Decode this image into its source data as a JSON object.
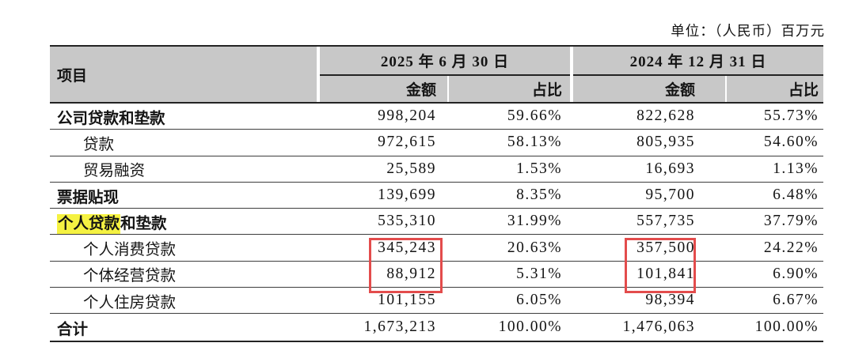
{
  "unit_note": "单位：（人民币）百万元",
  "colors": {
    "header_bg": "#c8c8c8",
    "highlight_yellow": "#f5f242",
    "annotation_red": "#e34c4c",
    "line_dark": "#232323"
  },
  "table": {
    "header": {
      "item": "项目",
      "period_2025": "2025 年 6 月 30 日",
      "period_2024": "2024 年 12 月 31 日",
      "amount_label": "金额",
      "ratio_label": "占比"
    },
    "rows": [
      {
        "label": "公司贷款和垫款",
        "amount_2025": "998,204",
        "ratio_2025": "59.66%",
        "amount_2024": "822,628",
        "ratio_2024": "55.73%"
      },
      {
        "label": "贷款",
        "amount_2025": "972,615",
        "ratio_2025": "58.13%",
        "amount_2024": "805,935",
        "ratio_2024": "54.60%"
      },
      {
        "label": "贸易融资",
        "amount_2025": "25,589",
        "ratio_2025": "1.53%",
        "amount_2024": "16,693",
        "ratio_2024": "1.13%"
      },
      {
        "label": "票据贴现",
        "amount_2025": "139,699",
        "ratio_2025": "8.35%",
        "amount_2024": "95,700",
        "ratio_2024": "6.48%"
      },
      {
        "label": "个人贷款和垫款",
        "label_highlight": "个人贷款",
        "label_rest": "和垫款",
        "amount_2025": "535,310",
        "ratio_2025": "31.99%",
        "amount_2024": "557,735",
        "ratio_2024": "37.79%"
      },
      {
        "label": "个人消费贷款",
        "amount_2025": "345,243",
        "ratio_2025": "20.63%",
        "amount_2024": "357,500",
        "ratio_2024": "24.22%"
      },
      {
        "label": "个体经营贷款",
        "amount_2025": "88,912",
        "ratio_2025": "5.31%",
        "amount_2024": "101,841",
        "ratio_2024": "6.90%"
      },
      {
        "label": "个人住房贷款",
        "amount_2025": "101,155",
        "ratio_2025": "6.05%",
        "amount_2024": "98,394",
        "ratio_2024": "6.67%"
      },
      {
        "label": "合计",
        "amount_2025": "1,673,213",
        "ratio_2025": "100.00%",
        "amount_2024": "1,476,063",
        "ratio_2024": "100.00%"
      }
    ]
  },
  "annotations": {
    "red_boxed_values_2025": [
      "345,243",
      "88,912"
    ],
    "red_boxed_values_2024": [
      "357,500",
      "101,841"
    ],
    "highlighted_text": "个人贷款"
  }
}
